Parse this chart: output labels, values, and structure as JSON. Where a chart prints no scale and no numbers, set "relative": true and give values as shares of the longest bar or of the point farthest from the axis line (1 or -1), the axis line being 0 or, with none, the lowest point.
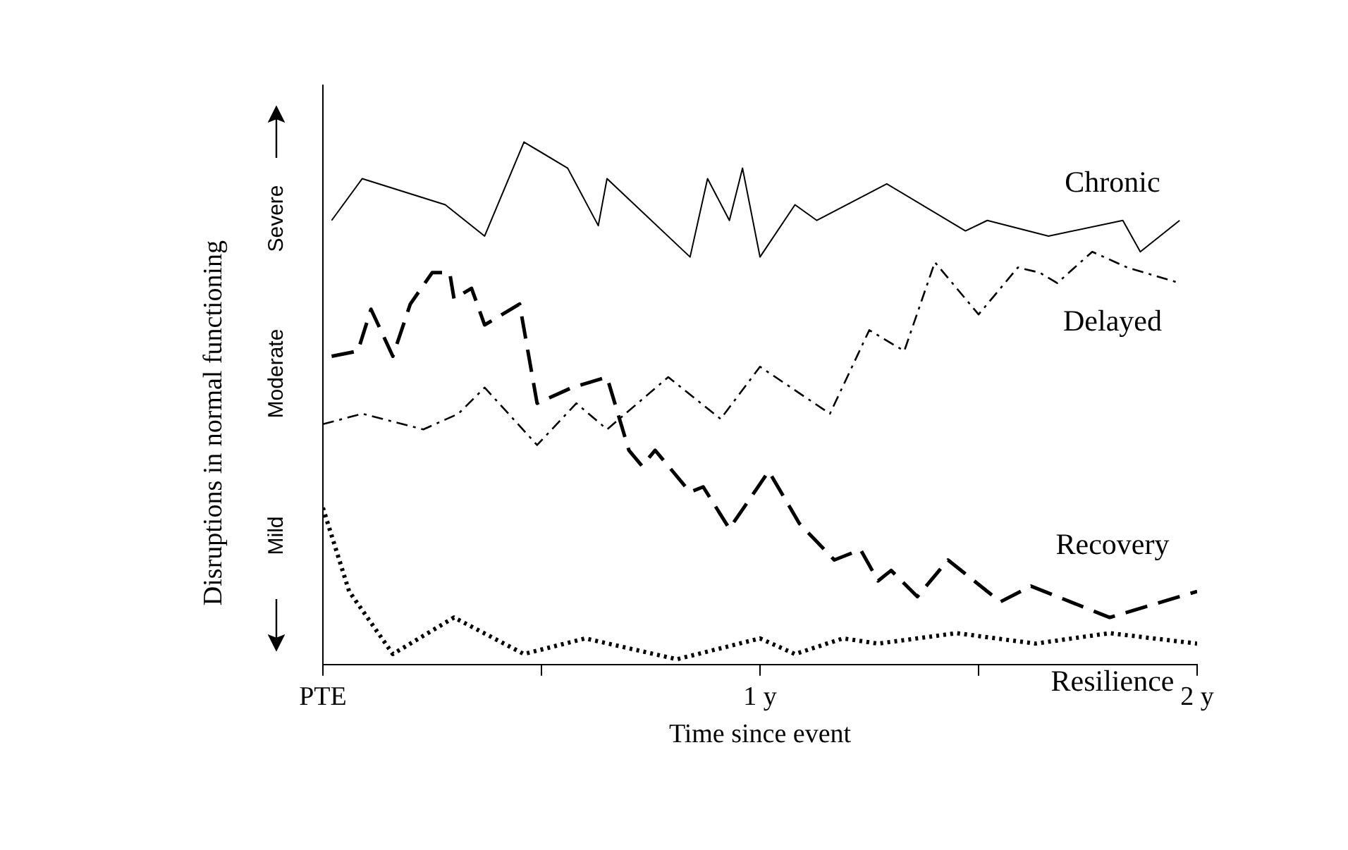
{
  "chart_data": {
    "type": "line",
    "relative": true,
    "xlabel": "Time since event",
    "ylabel": "Disruptions in normal functioning",
    "annotations": [
      "Severe",
      "Moderate",
      "Mild"
    ],
    "xlim": [
      0,
      2
    ],
    "xticks": [
      {
        "value": 0,
        "label": "PTE"
      },
      {
        "value": 0.5,
        "label": null
      },
      {
        "value": 1,
        "label": "1 y"
      },
      {
        "value": 1.5,
        "label": null
      },
      {
        "value": 2,
        "label": "2 y"
      }
    ],
    "grid": false,
    "legend": false,
    "marker": "none",
    "series": [
      {
        "name": "Chronic",
        "color": "#000000",
        "line_style": "solid",
        "x": [
          0.02,
          0.09,
          0.28,
          0.37,
          0.46,
          0.56,
          0.63,
          0.65,
          0.84,
          0.88,
          0.93,
          0.96,
          1.0,
          1.08,
          1.13,
          1.29,
          1.47,
          1.52,
          1.66,
          1.83,
          1.87,
          1.96
        ],
        "values": [
          0.85,
          0.93,
          0.88,
          0.82,
          1,
          0.95,
          0.84,
          0.93,
          0.78,
          0.93,
          0.85,
          0.95,
          0.78,
          0.88,
          0.85,
          0.92,
          0.83,
          0.85,
          0.82,
          0.85,
          0.79,
          0.85
        ]
      },
      {
        "name": "Delayed",
        "color": "#000000",
        "line_style": "dashdot",
        "x": [
          0,
          0.09,
          0.23,
          0.31,
          0.37,
          0.49,
          0.58,
          0.65,
          0.79,
          0.91,
          1.0,
          1.16,
          1.25,
          1.33,
          1.4,
          1.5,
          1.59,
          1.64,
          1.68,
          1.76,
          1.84,
          1.96
        ],
        "values": [
          0.46,
          0.48,
          0.45,
          0.48,
          0.53,
          0.42,
          0.5,
          0.45,
          0.55,
          0.47,
          0.57,
          0.48,
          0.64,
          0.6,
          0.77,
          0.67,
          0.76,
          0.75,
          0.73,
          0.79,
          0.76,
          0.73
        ]
      },
      {
        "name": "Recovery",
        "color": "#000000",
        "line_style": "dashed",
        "x": [
          0.02,
          0.08,
          0.11,
          0.16,
          0.2,
          0.25,
          0.29,
          0.3,
          0.34,
          0.37,
          0.45,
          0.49,
          0.57,
          0.65,
          0.7,
          0.73,
          0.76,
          0.84,
          0.87,
          0.93,
          1.02,
          1.09,
          1.17,
          1.23,
          1.27,
          1.3,
          1.36,
          1.43,
          1.55,
          1.62,
          1.8,
          2.0
        ],
        "values": [
          0.59,
          0.6,
          0.68,
          0.59,
          0.69,
          0.75,
          0.75,
          0.7,
          0.72,
          0.65,
          0.69,
          0.5,
          0.53,
          0.55,
          0.41,
          0.38,
          0.41,
          0.33,
          0.34,
          0.26,
          0.37,
          0.27,
          0.2,
          0.22,
          0.16,
          0.18,
          0.13,
          0.2,
          0.12,
          0.15,
          0.09,
          0.14
        ]
      },
      {
        "name": "Resilience",
        "color": "#000000",
        "line_style": "dotted",
        "x": [
          0,
          0.06,
          0.16,
          0.3,
          0.46,
          0.6,
          0.81,
          1.0,
          1.08,
          1.19,
          1.27,
          1.45,
          1.63,
          1.8,
          2.0
        ],
        "values": [
          0.3,
          0.14,
          0.02,
          0.09,
          0.02,
          0.05,
          0.01,
          0.05,
          0.02,
          0.05,
          0.04,
          0.06,
          0.04,
          0.06,
          0.04
        ]
      }
    ]
  }
}
